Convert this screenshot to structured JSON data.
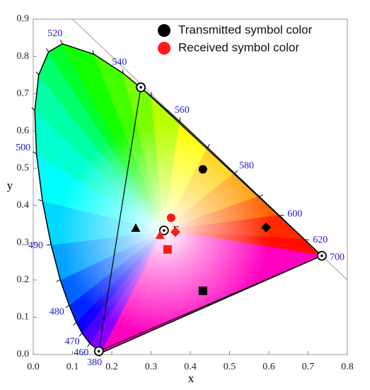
{
  "chart_data": {
    "type": "scatter",
    "x_label": "x",
    "y_label": "y",
    "xlim": [
      0,
      0.8
    ],
    "ylim": [
      0,
      0.9
    ],
    "xticks": [
      {
        "value": 0,
        "label": "0.0"
      },
      0.1,
      0.2,
      0.3,
      0.4,
      0.5,
      0.6,
      0.7,
      0.8
    ],
    "yticks": [
      {
        "value": 0,
        "label": "0.0"
      },
      0.1,
      0.2,
      0.3,
      0.4,
      0.5,
      0.6,
      0.7,
      0.8,
      0.9
    ],
    "legend_position": "upper right",
    "series": [
      {
        "name": "Transmitted symbol color",
        "color": "#000000",
        "markers": [
          "circle",
          "triangle",
          "diamond",
          "square"
        ],
        "x": [
          0.432,
          0.261,
          0.593,
          0.432
        ],
        "y": [
          0.497,
          0.339,
          0.341,
          0.171
        ]
      },
      {
        "name": "Received symbol color",
        "color": "#ff1a1a",
        "markers": [
          "circle",
          "triangle",
          "diamond",
          "square"
        ],
        "x": [
          0.351,
          0.323,
          0.362,
          0.342
        ],
        "y": [
          0.367,
          0.32,
          0.329,
          0.282
        ]
      }
    ],
    "locus": {
      "wavelengths": [
        380,
        460,
        470,
        null,
        480,
        null,
        490,
        null,
        500,
        null,
        null,
        null,
        520,
        null,
        540,
        null,
        560,
        null,
        580,
        null,
        600,
        620,
        700
      ],
      "x": [
        0.1741,
        0.144,
        0.1241,
        0.1096,
        0.0913,
        0.0687,
        0.0454,
        0.0235,
        0.0082,
        0.0039,
        0.0139,
        0.0389,
        0.0743,
        0.1547,
        0.2296,
        0.3016,
        0.3731,
        0.4441,
        0.5125,
        0.5752,
        0.627,
        0.6915,
        0.7347
      ],
      "y": [
        0.005,
        0.0297,
        0.0578,
        0.0868,
        0.1327,
        0.2007,
        0.295,
        0.4127,
        0.5384,
        0.6548,
        0.7502,
        0.812,
        0.8338,
        0.8059,
        0.7543,
        0.6923,
        0.6245,
        0.5547,
        0.4866,
        0.4242,
        0.3725,
        0.3083,
        0.2653
      ]
    },
    "primaries": {
      "x": [
        0.274,
        0.735,
        0.167
      ],
      "y": [
        0.717,
        0.265,
        0.009
      ]
    },
    "white_point": {
      "label": "E",
      "x": 0.333,
      "y": 0.333
    },
    "reference_line": {
      "x": [
        0.1,
        0.8
      ],
      "y": [
        0.9,
        0.2
      ]
    }
  }
}
